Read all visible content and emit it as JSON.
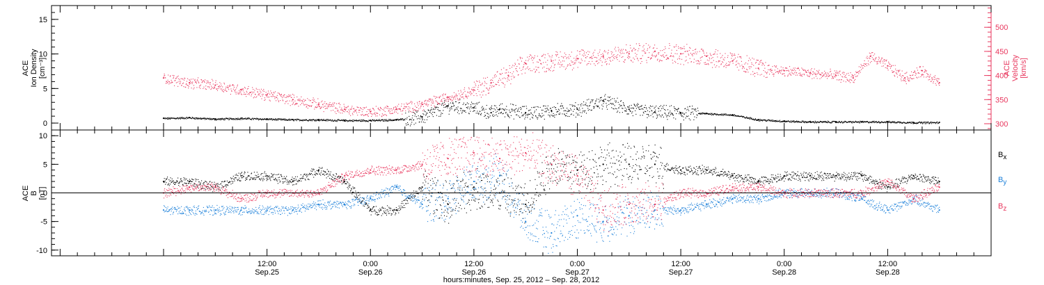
{
  "colors": {
    "black": "#000000",
    "pink": "#e8365d",
    "blue": "#1a7fd9"
  },
  "chart_data": [
    {
      "type": "scatter",
      "panel": "plasma",
      "left_axis": {
        "label_lines": [
          "ACE",
          "Ion Density",
          "[cm⁻³]"
        ],
        "ylim": [
          -1,
          17
        ],
        "ticks": [
          0,
          5,
          10,
          15
        ]
      },
      "right_axis": {
        "label_lines": [
          "ACE",
          "Velocity",
          "[km/s]"
        ],
        "ylim": [
          287,
          545
        ],
        "ticks": [
          300,
          350,
          400,
          450,
          500
        ]
      },
      "series": [
        {
          "color": "#000000",
          "axis": "left",
          "hours": [
            0,
            3,
            6,
            9,
            12,
            15,
            18,
            21,
            24,
            27,
            30,
            33,
            36,
            38,
            39,
            42,
            45,
            48,
            51,
            54,
            57,
            60,
            63,
            66,
            69,
            72,
            75,
            78,
            81,
            84,
            87,
            90
          ],
          "values": [
            0.7,
            0.8,
            0.6,
            0.7,
            0.6,
            0.5,
            0.5,
            0.4,
            0.4,
            0.5,
            0.9,
            2.5,
            2.2,
            1.5,
            2.0,
            1.5,
            1.8,
            2.0,
            3.2,
            2.0,
            1.6,
            1.5,
            1.4,
            1.2,
            0.5,
            0.3,
            0.2,
            0.2,
            0.2,
            0.2,
            0.1,
            0.1
          ]
        },
        {
          "color": "#e8365d",
          "axis": "right",
          "hours": [
            0,
            3,
            6,
            9,
            12,
            15,
            18,
            21,
            24,
            27,
            30,
            33,
            36,
            38,
            40,
            42,
            45,
            48,
            51,
            54,
            57,
            60,
            63,
            66,
            69,
            72,
            75,
            78,
            80,
            82,
            84,
            86,
            88,
            90
          ],
          "values": [
            395,
            385,
            380,
            370,
            360,
            350,
            340,
            330,
            325,
            330,
            340,
            355,
            370,
            385,
            400,
            425,
            430,
            435,
            440,
            445,
            450,
            445,
            440,
            430,
            415,
            410,
            405,
            400,
            395,
            440,
            420,
            395,
            410,
            385
          ]
        }
      ]
    },
    {
      "type": "scatter",
      "panel": "magnetic field",
      "left_axis": {
        "label_lines": [
          "ACE",
          "B",
          "[nT]"
        ],
        "ylim": [
          -11,
          11
        ],
        "ticks": [
          -10,
          -5,
          0,
          5,
          10
        ]
      },
      "legend": [
        "Bx",
        "By",
        "Bz"
      ],
      "series": [
        {
          "name": "Bx",
          "color": "#000000",
          "hours": [
            0,
            3,
            6,
            9,
            12,
            15,
            18,
            21,
            24,
            27,
            30,
            33,
            36,
            39,
            42,
            45,
            48,
            51,
            54,
            57,
            60,
            63,
            66,
            69,
            72,
            75,
            78,
            81,
            84,
            87,
            90
          ],
          "values": [
            2,
            2,
            1,
            3,
            3,
            2,
            4,
            2,
            -3,
            -3,
            1,
            -2,
            1,
            0,
            -2,
            5,
            4,
            5,
            5,
            5,
            4,
            4,
            3,
            2,
            3,
            3,
            3,
            3,
            1,
            3,
            2
          ]
        },
        {
          "name": "By",
          "color": "#1a7fd9",
          "hours": [
            0,
            3,
            6,
            9,
            12,
            15,
            18,
            21,
            24,
            27,
            30,
            33,
            36,
            39,
            42,
            45,
            48,
            51,
            54,
            57,
            60,
            63,
            66,
            69,
            72,
            75,
            78,
            81,
            84,
            87,
            90
          ],
          "values": [
            -3,
            -3,
            -3,
            -3,
            -3,
            -3,
            -2,
            -2,
            -1,
            1,
            -2,
            -1,
            2,
            3,
            -5,
            -7,
            -4,
            -5,
            -4,
            -3,
            -3,
            -2,
            -1,
            -1,
            0,
            0,
            0,
            -1,
            -3,
            -1,
            -3
          ]
        },
        {
          "name": "Bz",
          "color": "#e8365d",
          "hours": [
            0,
            3,
            6,
            9,
            12,
            15,
            18,
            21,
            24,
            27,
            30,
            33,
            36,
            39,
            42,
            45,
            48,
            51,
            54,
            57,
            60,
            63,
            66,
            69,
            72,
            75,
            78,
            81,
            84,
            87,
            90
          ],
          "values": [
            0,
            1,
            1,
            -1,
            0,
            0,
            0,
            3,
            4,
            4,
            5,
            6,
            7,
            6,
            7,
            5,
            3,
            -3,
            -2,
            -2,
            0,
            0,
            1,
            1,
            0,
            0,
            0,
            0,
            2,
            -1,
            1
          ]
        }
      ]
    }
  ],
  "time_axis": {
    "ticks": [
      {
        "hour": 12,
        "time": "12:00",
        "date": "Sep.25"
      },
      {
        "hour": 24,
        "time": "0:00",
        "date": "Sep.26"
      },
      {
        "hour": 36,
        "time": "12:00",
        "date": "Sep.26"
      },
      {
        "hour": 48,
        "time": "0:00",
        "date": "Sep.27"
      },
      {
        "hour": 60,
        "time": "12:00",
        "date": "Sep.27"
      },
      {
        "hour": 72,
        "time": "0:00",
        "date": "Sep.28"
      },
      {
        "hour": 84,
        "time": "12:00",
        "date": "Sep.28"
      }
    ],
    "title": "hours:minutes, Sep. 25, 2012 – Sep. 28, 2012"
  }
}
